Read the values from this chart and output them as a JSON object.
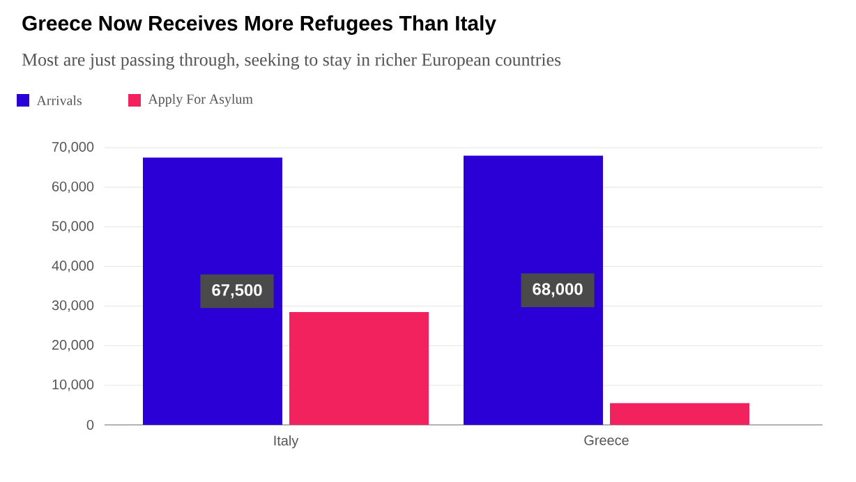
{
  "chart_data": {
    "type": "bar",
    "title": "Greece Now Receives More Refugees Than Italy",
    "subtitle": "Most are just passing through, seeking to stay in richer European countries",
    "categories": [
      "Italy",
      "Greece"
    ],
    "series": [
      {
        "name": "Arrivals",
        "color": "#2b00d6",
        "values": [
          67500,
          68000
        ],
        "value_labels": [
          "67,500",
          "68,000"
        ]
      },
      {
        "name": "Apply For Asylum",
        "color": "#f2225f",
        "values": [
          28500,
          5500
        ]
      }
    ],
    "ylim": [
      0,
      70000
    ],
    "yticks": [
      0,
      {
        "value": 10000,
        "label": "10,000"
      },
      {
        "value": 20000,
        "label": "20,000"
      },
      {
        "value": 30000,
        "label": "30,000"
      },
      {
        "value": 40000,
        "label": "40,000"
      },
      {
        "value": 50000,
        "label": "50,000"
      },
      {
        "value": 60000,
        "label": "60,000"
      },
      {
        "value": 70000,
        "label": "70,000"
      }
    ],
    "grid": "y",
    "legend": "top left"
  }
}
